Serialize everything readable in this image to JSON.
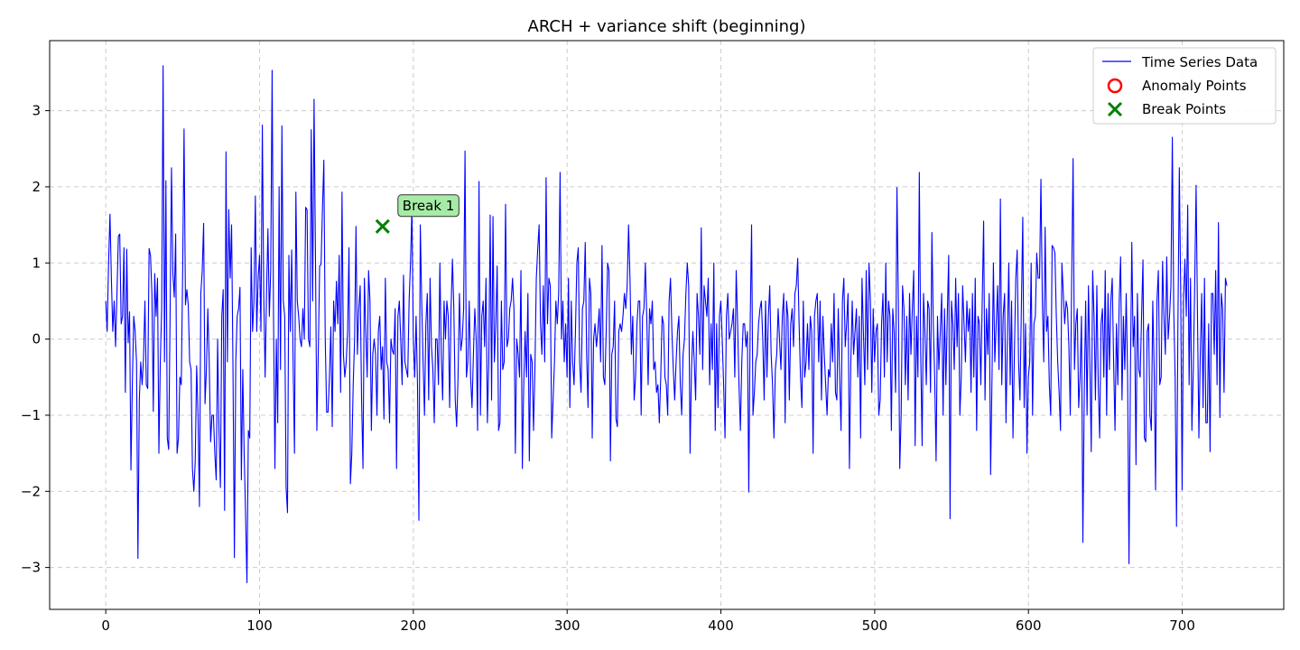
{
  "chart_data": {
    "type": "line",
    "title": "ARCH + variance shift (beginning)",
    "xlabel": "",
    "ylabel": "",
    "xlim": [
      -36.5,
      766
    ],
    "ylim": [
      -3.55,
      3.92
    ],
    "x_ticks": [
      0,
      100,
      200,
      300,
      400,
      500,
      600,
      700
    ],
    "y_ticks": [
      -3,
      -2,
      -1,
      0,
      1,
      2,
      3
    ],
    "grid": true,
    "legend_position": "top-right",
    "series": [
      {
        "name": "Time Series Data",
        "color": "#0000ff",
        "x_start": 0,
        "x_end": 729,
        "values": [
          0.5,
          0.1,
          1.0,
          1.64,
          0.8,
          0.1,
          0.5,
          -0.1,
          0.6,
          1.35,
          1.38,
          0.2,
          0.3,
          1.2,
          -0.7,
          1.18,
          -0.05,
          0.36,
          -1.72,
          -0.6,
          0.3,
          0.1,
          -0.3,
          -2.88,
          -0.8,
          -0.3,
          -0.6,
          -0.25,
          0.5,
          -0.6,
          -0.65,
          1.19,
          1.1,
          0.6,
          -0.95,
          0.86,
          0.3,
          0.8,
          -1.5,
          -0.3,
          0.4,
          3.59,
          -0.3,
          2.08,
          -1.3,
          -1.45,
          0.3,
          2.25,
          0.86,
          0.55,
          1.38,
          -1.5,
          -1.3,
          -0.5,
          -0.6,
          0.9,
          2.76,
          0.45,
          0.65,
          0.45,
          -0.3,
          -0.4,
          -1.7,
          -2.0,
          -1.6,
          -0.35,
          -1.0,
          -2.2,
          0.6,
          0.9,
          1.52,
          -0.85,
          -0.4,
          0.4,
          -0.3,
          -1.35,
          -1.0,
          -1.0,
          -1.5,
          -1.85,
          0.0,
          -1.2,
          -1.95,
          0.3,
          0.65,
          -2.25,
          2.46,
          -0.3,
          1.7,
          0.8,
          1.5,
          -0.4,
          -2.87,
          -0.3,
          0.3,
          0.4,
          0.68,
          -1.85,
          -0.4,
          -1.5,
          -2.3,
          -3.2,
          -1.2,
          -1.3,
          1.2,
          0.1,
          0.5,
          1.88,
          0.1,
          0.8,
          1.1,
          0.1,
          2.81,
          0.6,
          -0.5,
          0.6,
          1.45,
          0.3,
          0.9,
          3.53,
          0.3,
          -1.7,
          0.0,
          -1.1,
          2.0,
          -0.4,
          2.8,
          0.5,
          0.3,
          -1.95,
          -2.28,
          1.1,
          0.1,
          1.17,
          -0.3,
          -1.5,
          1.93,
          0.5,
          0.3,
          0.0,
          -0.1,
          0.4,
          0.0,
          1.73,
          1.7,
          0.0,
          -0.1,
          2.75,
          0.5,
          3.15,
          1.1,
          -1.2,
          -0.2,
          0.96,
          0.98,
          1.7,
          2.35,
          0.0,
          -0.96,
          -0.96,
          -0.5,
          0.16,
          -1.15,
          0.5,
          0.1,
          0.76,
          0.2,
          1.1,
          -0.7,
          1.93,
          -0.2,
          -0.5,
          -0.3,
          0.1,
          1.2,
          -1.9,
          -1.5,
          -0.6,
          0.0,
          1.48,
          -0.2,
          0.4,
          0.7,
          -0.8,
          -1.7,
          0.8,
          0.1,
          -0.5,
          0.9,
          0.5,
          -1.2,
          -0.2,
          0.0,
          -0.2,
          -1.0,
          0.1,
          0.3,
          -0.4,
          -0.1,
          -1.05,
          0.8,
          -0.3,
          -0.4,
          -1.1,
          0.0,
          -0.15,
          -0.2,
          0.4,
          -1.7,
          0.3,
          0.5,
          0.0,
          -0.6,
          0.84,
          -0.3,
          -0.4,
          -0.5,
          0.5,
          1.0,
          1.72,
          0.0,
          -0.5,
          0.3,
          -0.6,
          -2.38,
          1.5,
          0.5,
          -0.3,
          -1.0,
          0.2,
          0.6,
          -0.8,
          0.8,
          -0.1,
          -0.4,
          -1.1,
          0.0,
          0.0,
          -0.6,
          1.0,
          -0.2,
          -0.8,
          0.5,
          0.0,
          0.5,
          0.3,
          -0.9,
          0.4,
          1.05,
          0.4,
          -0.8,
          -1.15,
          -0.5,
          0.6,
          -0.15,
          0.0,
          0.4,
          2.47,
          -0.5,
          -0.3,
          0.5,
          -0.5,
          -0.9,
          -0.2,
          0.4,
          0.0,
          -1.2,
          2.07,
          -1.0,
          0.3,
          0.5,
          -0.1,
          0.8,
          -1.1,
          -0.3,
          1.63,
          -0.8,
          1.61,
          -0.3,
          0.2,
          0.96,
          -1.2,
          -1.1,
          0.5,
          -0.4,
          -0.3,
          1.77,
          -0.1,
          0.0,
          0.4,
          0.5,
          0.8,
          0.4,
          -1.5,
          0.0,
          -0.2,
          -0.5,
          0.9,
          -1.7,
          -0.6,
          0.1,
          -0.5,
          0.6,
          -1.6,
          -0.2,
          -0.3,
          -1.2,
          -0.4,
          0.8,
          1.18,
          1.5,
          0.2,
          -0.2,
          0.7,
          -0.3,
          2.12,
          0.2,
          0.8,
          0.7,
          -1.3,
          -0.8,
          -0.3,
          0.5,
          0.2,
          0.6,
          2.19,
          0.0,
          0.5,
          -0.3,
          0.2,
          -0.5,
          0.8,
          -0.9,
          0.5,
          -0.3,
          -0.6,
          0.1,
          1.0,
          1.2,
          -0.3,
          -0.7,
          0.4,
          0.5,
          1.27,
          -0.2,
          -0.9,
          0.8,
          0.6,
          -1.3,
          0.0,
          0.2,
          -0.1,
          0.1,
          0.4,
          -0.3,
          1.23,
          -0.5,
          -0.6,
          0.1,
          1.0,
          0.9,
          -1.6,
          -0.2,
          -0.1,
          0.5,
          -1.05,
          -1.15,
          0.1,
          0.2,
          0.1,
          0.3,
          0.6,
          0.4,
          0.7,
          1.5,
          0.8,
          -0.2,
          0.3,
          -0.8,
          -0.5,
          0.2,
          0.5,
          0.5,
          -1.0,
          0.3,
          0.4,
          1.0,
          0.3,
          -0.6,
          0.4,
          0.2,
          0.5,
          -0.4,
          -0.3,
          -0.7,
          -0.6,
          -1.1,
          -0.5,
          0.3,
          0.2,
          -0.5,
          -0.6,
          -1.0,
          0.5,
          0.8,
          0.1,
          -0.4,
          -0.8,
          -0.3,
          0.1,
          0.3,
          -0.6,
          -1.0,
          -0.2,
          0.0,
          0.6,
          1.0,
          0.7,
          -1.5,
          -0.4,
          0.1,
          -0.3,
          -0.8,
          0.6,
          0.3,
          -0.2,
          1.46,
          -0.4,
          0.7,
          0.5,
          0.3,
          0.8,
          -0.6,
          0.2,
          -0.4,
          1.0,
          -1.2,
          0.2,
          -0.9,
          0.3,
          0.5,
          0.0,
          -0.6,
          -1.3,
          0.3,
          0.6,
          0.0,
          0.1,
          0.2,
          0.4,
          -0.5,
          0.9,
          0.2,
          -0.6,
          -1.2,
          -0.3,
          0.2,
          0.2,
          -0.1,
          0.1,
          -2.01,
          0.2,
          1.5,
          -1.0,
          -0.7,
          -0.3,
          -0.2,
          0.2,
          0.4,
          0.5,
          0.0,
          -0.8,
          0.5,
          -0.5,
          0.3,
          0.7,
          -0.2,
          -0.6,
          -1.3,
          -0.4,
          -0.2,
          0.4,
          0.0,
          -0.4,
          0.3,
          0.6,
          -1.1,
          0.5,
          0.3,
          -0.8,
          0.2,
          0.4,
          -0.1,
          0.6,
          0.7,
          1.06,
          0.2,
          -0.5,
          -0.9,
          0.5,
          -0.5,
          -0.3,
          0.2,
          -0.4,
          0.3,
          0.1,
          -1.5,
          0.3,
          0.5,
          0.6,
          -0.3,
          0.5,
          -0.8,
          0.3,
          -0.2,
          -0.6,
          -1.0,
          -0.4,
          -0.5,
          0.2,
          -0.3,
          0.6,
          -0.7,
          -0.8,
          0.4,
          -0.5,
          -1.2,
          0.5,
          0.8,
          -0.1,
          0.2,
          0.6,
          -1.7,
          -0.3,
          0.5,
          -0.2,
          0.1,
          0.4,
          -0.5,
          0.3,
          -1.3,
          0.8,
          0.1,
          -0.6,
          0.9,
          -0.4,
          1.0,
          0.5,
          -0.7,
          0.4,
          -0.3,
          0.1,
          0.2,
          -1.0,
          -0.8,
          0.2,
          0.6,
          -0.5,
          1.0,
          -0.3,
          0.5,
          0.3,
          -1.2,
          0.4,
          0.1,
          -0.7,
          1.99,
          0.5,
          -1.7,
          -1.0,
          0.7,
          0.4,
          -0.6,
          0.3,
          -0.8,
          0.6,
          -0.2,
          0.4,
          0.9,
          -1.4,
          0.3,
          -0.5,
          2.19,
          -0.2,
          -1.4,
          0.6,
          0.1,
          -0.6,
          0.5,
          0.4,
          -0.7,
          1.4,
          0.2,
          -0.5,
          -1.6,
          0.3,
          -0.4,
          0.1,
          0.6,
          -1.0,
          0.4,
          -0.6,
          0.3,
          1.1,
          -2.36,
          0.5,
          0.2,
          -0.4,
          0.8,
          -0.1,
          0.6,
          -1.0,
          -0.5,
          0.7,
          0.2,
          -0.3,
          0.5,
          0.1,
          0.4,
          -0.7,
          0.6,
          -0.5,
          0.8,
          -1.2,
          0.3,
          0.2,
          -0.6,
          0.5,
          1.55,
          -0.8,
          0.4,
          -0.2,
          0.6,
          -1.78,
          -0.5,
          1.0,
          -0.3,
          0.2,
          0.7,
          -0.4,
          1.84,
          -0.6,
          0.3,
          0.6,
          -1.1,
          0.0,
          1.0,
          -0.6,
          0.5,
          -1.3,
          -0.2,
          0.8,
          1.17,
          -0.3,
          -0.8,
          0.4,
          1.6,
          -0.9,
          0.2,
          -1.5,
          -0.5,
          -0.3,
          1.0,
          -1.0,
          0.2,
          0.3,
          1.13,
          0.8,
          0.8,
          2.1,
          0.5,
          -0.3,
          1.47,
          0.1,
          0.3,
          -0.6,
          -1.0,
          1.23,
          1.2,
          1.13,
          0.3,
          -0.3,
          -0.7,
          -1.2,
          1.0,
          0.6,
          0.2,
          0.5,
          0.4,
          -0.1,
          -1.0,
          0.8,
          2.37,
          -0.4,
          0.2,
          0.4,
          -0.9,
          -0.5,
          0.3,
          -2.67,
          -0.7,
          0.5,
          -1.0,
          0.7,
          -0.3,
          -1.48,
          0.9,
          0.3,
          -0.8,
          0.7,
          -0.6,
          -1.3,
          0.2,
          0.4,
          -0.5,
          0.9,
          -1.0,
          0.6,
          -0.4,
          0.5,
          0.8,
          -0.3,
          -1.2,
          0.2,
          -0.6,
          0.5,
          1.08,
          -0.8,
          0.3,
          -0.4,
          0.6,
          -0.5,
          -2.95,
          -0.5,
          1.27,
          -0.1,
          0.3,
          -1.65,
          0.6,
          -0.4,
          -0.5,
          0.3,
          1.04,
          -1.3,
          -1.35,
          0.1,
          0.2,
          -1.0,
          -1.2,
          0.5,
          -0.4,
          -1.98,
          0.5,
          0.9,
          -0.6,
          -0.5,
          1.02,
          0.3,
          -0.2,
          1.08,
          0.0,
          0.3,
          0.7,
          2.65,
          0.4,
          -0.5,
          -2.46,
          0.2,
          2.25,
          0.6,
          -1.98,
          0.5,
          1.05,
          0.3,
          1.76,
          -0.6,
          0.8,
          -1.2,
          -0.4,
          0.7,
          2.02,
          0.3,
          -1.3,
          -0.2,
          0.6,
          -0.9,
          0.8,
          -1.1,
          -1.1,
          0.2,
          -1.48,
          0.6,
          0.6,
          -0.2,
          0.9,
          -0.6,
          1.53,
          -1.03,
          0.6,
          0.4,
          -0.7,
          0.8,
          0.7
        ]
      },
      {
        "name": "Anomaly Points",
        "color": "#ff0000",
        "marker": "circle-open",
        "points": []
      },
      {
        "name": "Break Points",
        "color": "#008000",
        "marker": "x",
        "points": [
          {
            "x": 180,
            "y": 1.48
          }
        ]
      }
    ],
    "annotations": [
      {
        "text": "Break 1",
        "x": 180,
        "y": 1.48,
        "box_color": "#a6eba6"
      }
    ]
  }
}
